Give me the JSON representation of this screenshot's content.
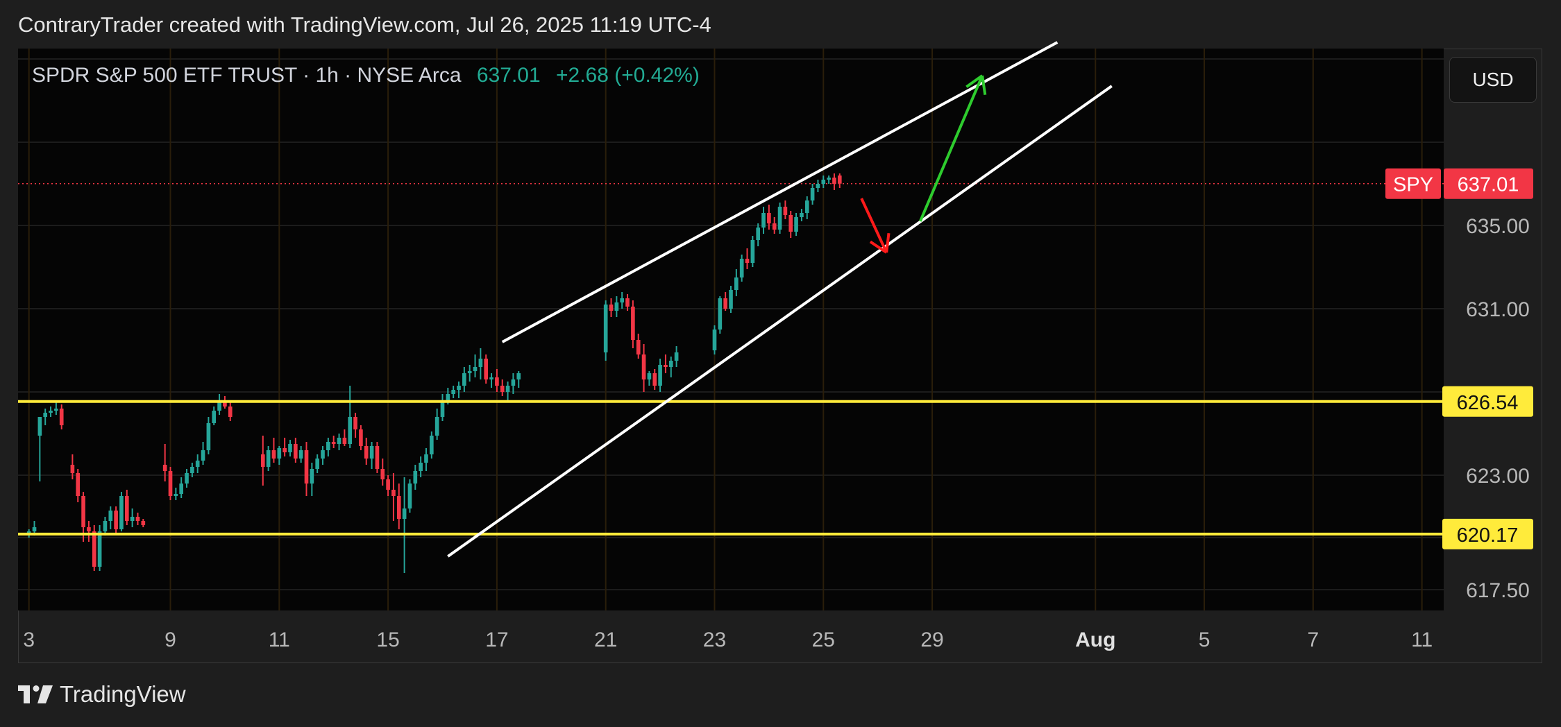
{
  "header": {
    "credit": "ContraryTrader created with TradingView.com, Jul 26, 2025 11:19 UTC-4"
  },
  "legend": {
    "symbol_text": "SPDR S&P 500 ETF TRUST · 1h · NYSE Arca",
    "last_price": "637.01",
    "change": "+2.68 (+0.42%)"
  },
  "currency_button": {
    "label": "USD"
  },
  "footer": {
    "brand": "TradingView",
    "logo_icon": "tradingview-logo-icon"
  },
  "colors": {
    "up": "#26a69a",
    "down": "#f23645",
    "level_line": "#ffeb3b",
    "channel_line": "#ffffff",
    "up_arrow": "#2ecc2e",
    "down_arrow": "#ff1a1a"
  },
  "chart_data": {
    "type": "candlestick",
    "title": "SPDR S&P 500 ETF TRUST · 1h · NYSE Arca",
    "x_axis": {
      "ticks": [
        {
          "label": "3",
          "pos": 0
        },
        {
          "label": "9",
          "pos": 13
        },
        {
          "label": "11",
          "pos": 23
        },
        {
          "label": "15",
          "pos": 33
        },
        {
          "label": "17",
          "pos": 43
        },
        {
          "label": "21",
          "pos": 53
        },
        {
          "label": "23",
          "pos": 63
        },
        {
          "label": "25",
          "pos": 73
        },
        {
          "label": "29",
          "pos": 83
        },
        {
          "label": "Aug",
          "pos": 98,
          "bold": true
        },
        {
          "label": "5",
          "pos": 108
        },
        {
          "label": "7",
          "pos": 118
        },
        {
          "label": "11",
          "pos": 128
        }
      ]
    },
    "y_axis": {
      "ylim": [
        616.5,
        643.5
      ],
      "tick_labels": [
        "617.50",
        "623.00",
        "631.00",
        "635.00"
      ]
    },
    "price_badges": [
      {
        "symbol": "SPY",
        "value": 637.01,
        "label": "637.01"
      }
    ],
    "horizontal_levels": [
      {
        "value": 626.54,
        "label": "626.54"
      },
      {
        "value": 620.17,
        "label": "620.17"
      }
    ],
    "candles": [
      [
        620.2,
        620.4,
        620.0,
        620.3
      ],
      [
        620.3,
        620.8,
        620.1,
        620.5
      ],
      [
        624.9,
        625.8,
        622.7,
        625.8
      ],
      [
        625.8,
        626.2,
        625.4,
        626.0
      ],
      [
        626.0,
        626.3,
        625.8,
        626.1
      ],
      [
        626.1,
        626.5,
        625.9,
        626.2
      ],
      [
        626.2,
        626.4,
        625.2,
        625.4
      ],
      [
        623.5,
        624.0,
        622.8,
        623.1
      ],
      [
        623.1,
        623.3,
        621.7,
        622.0
      ],
      [
        622.0,
        622.2,
        619.8,
        620.5
      ],
      [
        620.5,
        620.8,
        619.8,
        620.3
      ],
      [
        620.3,
        620.6,
        618.4,
        618.6
      ],
      [
        618.6,
        620.6,
        618.4,
        620.3
      ],
      [
        620.3,
        621.0,
        620.1,
        620.8
      ],
      [
        620.8,
        621.5,
        620.4,
        621.3
      ],
      [
        621.3,
        621.5,
        620.2,
        620.4
      ],
      [
        620.4,
        622.2,
        620.3,
        622.0
      ],
      [
        622.0,
        622.3,
        620.6,
        620.8
      ],
      [
        620.8,
        621.4,
        620.5,
        621.0
      ],
      [
        621.0,
        621.2,
        620.6,
        620.8
      ],
      [
        620.8,
        620.9,
        620.5,
        620.6
      ],
      [
        623.5,
        624.5,
        622.7,
        623.2
      ],
      [
        623.2,
        623.4,
        621.8,
        622.0
      ],
      [
        622.0,
        622.4,
        621.8,
        622.1
      ],
      [
        622.1,
        622.9,
        621.9,
        622.6
      ],
      [
        622.6,
        623.3,
        622.4,
        623.1
      ],
      [
        623.1,
        623.6,
        622.9,
        623.4
      ],
      [
        623.4,
        624.0,
        623.1,
        623.7
      ],
      [
        623.7,
        624.6,
        623.5,
        624.2
      ],
      [
        624.2,
        625.8,
        624.0,
        625.5
      ],
      [
        625.5,
        626.3,
        625.4,
        626.1
      ],
      [
        626.1,
        626.9,
        625.9,
        626.5
      ],
      [
        626.5,
        626.8,
        626.2,
        626.3
      ],
      [
        626.3,
        626.5,
        625.6,
        625.8
      ],
      [
        624.0,
        624.9,
        622.5,
        623.4
      ],
      [
        623.4,
        624.4,
        623.2,
        624.2
      ],
      [
        624.2,
        624.8,
        623.6,
        623.8
      ],
      [
        623.8,
        624.4,
        623.5,
        624.3
      ],
      [
        624.3,
        624.8,
        623.9,
        624.1
      ],
      [
        624.1,
        624.7,
        623.9,
        624.5
      ],
      [
        624.5,
        624.8,
        623.6,
        623.8
      ],
      [
        623.8,
        624.4,
        623.6,
        624.2
      ],
      [
        624.2,
        624.6,
        622.0,
        622.6
      ],
      [
        622.6,
        623.6,
        622.0,
        623.3
      ],
      [
        623.3,
        624.0,
        623.1,
        623.8
      ],
      [
        623.8,
        624.4,
        623.5,
        624.2
      ],
      [
        624.2,
        624.8,
        623.9,
        624.6
      ],
      [
        624.6,
        624.9,
        624.3,
        624.5
      ],
      [
        624.5,
        625.0,
        624.2,
        624.8
      ],
      [
        624.8,
        625.2,
        624.4,
        624.5
      ],
      [
        624.5,
        627.3,
        624.3,
        625.8
      ],
      [
        625.8,
        626.0,
        624.8,
        625.2
      ],
      [
        625.2,
        625.4,
        624.2,
        624.4
      ],
      [
        624.4,
        624.8,
        623.5,
        623.8
      ],
      [
        623.8,
        624.6,
        623.3,
        624.4
      ],
      [
        624.4,
        624.6,
        623.1,
        623.3
      ],
      [
        623.3,
        623.8,
        622.5,
        622.8
      ],
      [
        622.8,
        623.0,
        622.0,
        622.3
      ],
      [
        622.3,
        623.1,
        620.8,
        622.0
      ],
      [
        622.0,
        622.6,
        620.4,
        620.9
      ],
      [
        620.9,
        622.9,
        618.3,
        621.4
      ],
      [
        621.4,
        622.8,
        621.2,
        622.6
      ],
      [
        622.6,
        623.5,
        622.3,
        623.2
      ],
      [
        623.2,
        623.9,
        622.9,
        623.6
      ],
      [
        623.6,
        624.3,
        623.2,
        624.0
      ],
      [
        624.0,
        625.1,
        623.8,
        624.9
      ],
      [
        624.9,
        626.2,
        624.7,
        625.8
      ],
      [
        625.8,
        626.9,
        625.6,
        626.6
      ],
      [
        626.6,
        627.2,
        626.4,
        626.9
      ],
      [
        626.9,
        627.3,
        626.7,
        627.1
      ],
      [
        627.1,
        627.5,
        626.7,
        627.3
      ],
      [
        627.3,
        628.2,
        627.0,
        627.9
      ],
      [
        627.9,
        628.3,
        627.5,
        628.0
      ],
      [
        628.0,
        628.8,
        627.7,
        628.2
      ],
      [
        628.2,
        629.1,
        627.6,
        628.6
      ],
      [
        628.6,
        628.8,
        627.4,
        627.6
      ],
      [
        627.6,
        627.9,
        627.2,
        627.7
      ],
      [
        627.7,
        628.1,
        627.0,
        627.3
      ],
      [
        627.3,
        627.6,
        626.8,
        627.0
      ],
      [
        627.0,
        627.5,
        626.6,
        627.3
      ],
      [
        627.3,
        627.9,
        626.9,
        627.6
      ],
      [
        627.6,
        628.0,
        627.2,
        627.9
      ],
      [
        628.9,
        631.4,
        628.5,
        631.2
      ],
      [
        631.2,
        631.5,
        630.6,
        630.9
      ],
      [
        630.9,
        631.6,
        630.6,
        631.3
      ],
      [
        631.3,
        631.8,
        631.0,
        631.5
      ],
      [
        631.5,
        631.7,
        630.9,
        631.1
      ],
      [
        631.1,
        631.4,
        629.1,
        629.5
      ],
      [
        629.5,
        629.8,
        628.6,
        628.8
      ],
      [
        628.8,
        629.3,
        627.0,
        627.6
      ],
      [
        627.6,
        628.0,
        627.3,
        627.9
      ],
      [
        627.9,
        628.1,
        627.1,
        627.3
      ],
      [
        627.3,
        628.6,
        627.0,
        628.3
      ],
      [
        628.3,
        628.8,
        627.9,
        628.2
      ],
      [
        628.2,
        628.7,
        627.7,
        628.5
      ],
      [
        628.5,
        629.2,
        628.2,
        628.9
      ],
      [
        629.0,
        630.2,
        628.8,
        630.0
      ],
      [
        630.0,
        631.6,
        629.8,
        631.5
      ],
      [
        631.5,
        631.8,
        630.9,
        631.0
      ],
      [
        631.0,
        632.1,
        630.8,
        631.9
      ],
      [
        631.9,
        632.9,
        631.6,
        632.5
      ],
      [
        632.5,
        633.6,
        632.3,
        633.4
      ],
      [
        633.4,
        633.9,
        632.9,
        633.2
      ],
      [
        633.2,
        634.5,
        633.0,
        634.3
      ],
      [
        634.3,
        635.1,
        634.0,
        634.9
      ],
      [
        634.9,
        635.9,
        634.6,
        635.6
      ],
      [
        635.6,
        636.0,
        634.8,
        635.1
      ],
      [
        635.1,
        635.4,
        634.6,
        634.8
      ],
      [
        634.8,
        636.1,
        634.6,
        635.9
      ],
      [
        635.9,
        636.2,
        635.3,
        635.5
      ],
      [
        635.5,
        635.7,
        634.4,
        634.7
      ],
      [
        634.7,
        635.6,
        634.5,
        635.4
      ],
      [
        635.4,
        635.8,
        635.2,
        635.6
      ],
      [
        635.6,
        636.4,
        635.3,
        636.2
      ],
      [
        636.2,
        637.0,
        636.0,
        636.8
      ],
      [
        636.8,
        637.2,
        636.6,
        637.0
      ],
      [
        637.0,
        637.4,
        636.8,
        637.2
      ],
      [
        637.2,
        637.4,
        637.0,
        637.3
      ],
      [
        637.3,
        637.5,
        636.7,
        637.0
      ],
      [
        637.4,
        637.5,
        636.8,
        637.01
      ]
    ],
    "candle_x_positions": [
      0,
      0.5,
      1,
      1.5,
      2,
      2.5,
      3,
      4,
      4.5,
      5,
      5.5,
      6,
      6.5,
      7,
      7.5,
      8,
      8.5,
      9,
      9.5,
      10,
      10.5,
      12.5,
      13,
      13.5,
      14,
      14.5,
      15,
      15.5,
      16,
      16.5,
      17,
      17.5,
      18,
      18.5,
      21.5,
      22,
      22.5,
      23,
      23.5,
      24,
      24.5,
      25,
      25.5,
      26,
      26.5,
      27,
      27.5,
      28,
      28.5,
      29,
      29.5,
      30,
      30.5,
      31,
      31.5,
      32,
      32.5,
      33,
      33.5,
      34,
      34.5,
      35,
      35.5,
      36,
      36.5,
      37,
      37.5,
      38,
      38.5,
      39,
      39.5,
      40,
      40.5,
      41,
      41.5,
      42,
      42.5,
      43,
      43.5,
      44,
      44.5,
      45,
      53,
      53.5,
      54,
      54.5,
      55,
      55.5,
      56,
      56.5,
      57,
      57.5,
      58,
      58.5,
      59,
      59.5,
      63,
      63.5,
      64,
      64.5,
      65,
      65.5,
      66,
      66.5,
      67,
      67.5,
      68,
      68.5,
      69,
      69.5,
      70,
      70.5,
      71,
      71.5,
      72,
      72.5,
      73,
      73.5,
      74,
      74.5
    ],
    "x_index_range": [
      -1,
      130
    ],
    "channel_lines": [
      {
        "from": [
          43.5,
          629.4
        ],
        "to": [
          94.5,
          643.8
        ]
      },
      {
        "from": [
          38.5,
          619.1
        ],
        "to": [
          99.5,
          641.7
        ]
      }
    ],
    "arrows": [
      {
        "kind": "down",
        "from": [
          76.5,
          636.3
        ],
        "to": [
          78.8,
          633.7
        ]
      },
      {
        "kind": "up",
        "from": [
          81.9,
          635.2
        ],
        "to": [
          87.6,
          642.2
        ]
      }
    ]
  }
}
